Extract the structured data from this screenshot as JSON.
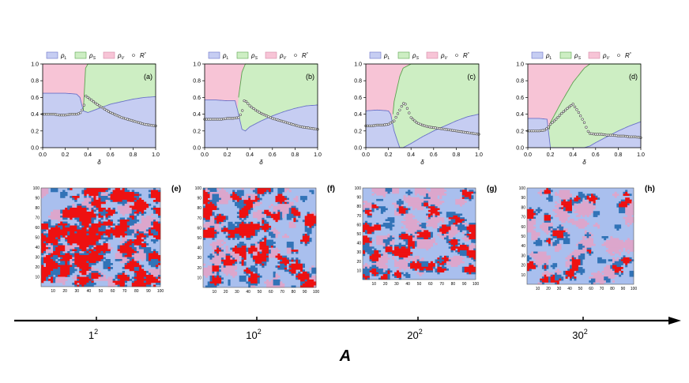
{
  "chart_data": [
    {
      "type": "area",
      "panel_label": "(a)",
      "xlabel": "δ",
      "xlim": [
        0,
        1
      ],
      "ylim": [
        0,
        1
      ],
      "xticks": [
        "0.0",
        "0.2",
        "0.4",
        "0.6",
        "0.8",
        "1.0"
      ],
      "yticks": [
        "0.0",
        "0.2",
        "0.4",
        "0.6",
        "0.8",
        "1.0"
      ],
      "legend": [
        "ρL",
        "ρS",
        "ρV",
        "R*"
      ],
      "series": [
        {
          "name": "ρL",
          "x": [
            0,
            0.1,
            0.2,
            0.3,
            0.33,
            0.36,
            0.4,
            0.5,
            0.6,
            0.7,
            0.8,
            0.9,
            1.0
          ],
          "values": [
            0.65,
            0.65,
            0.65,
            0.64,
            0.6,
            0.44,
            0.42,
            0.47,
            0.52,
            0.55,
            0.58,
            0.6,
            0.61
          ]
        },
        {
          "name": "ρS",
          "x": [
            0,
            0.1,
            0.2,
            0.3,
            0.33,
            0.36,
            0.38,
            0.4,
            0.5,
            0.6,
            0.7,
            0.8,
            0.9,
            1.0
          ],
          "values": [
            0,
            0,
            0,
            0,
            0.05,
            0.45,
            0.95,
            1.0,
            1.0,
            1.0,
            1.0,
            1.0,
            1.0,
            1.0
          ]
        },
        {
          "name": "R*",
          "x": [
            0.0,
            0.05,
            0.1,
            0.15,
            0.2,
            0.25,
            0.3,
            0.33,
            0.35,
            0.37,
            0.38,
            0.4,
            0.45,
            0.5,
            0.55,
            0.6,
            0.65,
            0.7,
            0.75,
            0.8,
            0.85,
            0.9,
            0.95,
            1.0
          ],
          "values": [
            0.4,
            0.4,
            0.4,
            0.39,
            0.39,
            0.4,
            0.4,
            0.41,
            0.45,
            0.52,
            0.62,
            0.6,
            0.55,
            0.5,
            0.46,
            0.42,
            0.39,
            0.36,
            0.34,
            0.32,
            0.3,
            0.28,
            0.27,
            0.26
          ]
        }
      ]
    },
    {
      "type": "area",
      "panel_label": "(b)",
      "xlabel": "δ",
      "xlim": [
        0,
        1
      ],
      "ylim": [
        0,
        1
      ],
      "xticks": [
        "0.0",
        "0.2",
        "0.4",
        "0.6",
        "0.8",
        "1.0"
      ],
      "yticks": [
        "0.0",
        "0.2",
        "0.4",
        "0.6",
        "0.8",
        "1.0"
      ],
      "legend": [
        "ρL",
        "ρS",
        "ρV",
        "R*"
      ],
      "series": [
        {
          "name": "ρL",
          "x": [
            0,
            0.1,
            0.2,
            0.27,
            0.3,
            0.33,
            0.36,
            0.4,
            0.5,
            0.6,
            0.7,
            0.8,
            0.9,
            1.0
          ],
          "values": [
            0.57,
            0.57,
            0.56,
            0.56,
            0.4,
            0.22,
            0.2,
            0.25,
            0.32,
            0.38,
            0.43,
            0.47,
            0.5,
            0.51
          ]
        },
        {
          "name": "ρS",
          "x": [
            0,
            0.1,
            0.2,
            0.27,
            0.3,
            0.33,
            0.36,
            0.4,
            0.5,
            0.6,
            0.7,
            0.8,
            0.9,
            1.0
          ],
          "values": [
            0,
            0,
            0,
            0,
            0.6,
            0.9,
            1.0,
            1.0,
            1.0,
            1.0,
            1.0,
            1.0,
            1.0,
            1.0
          ]
        },
        {
          "name": "R*",
          "x": [
            0.0,
            0.05,
            0.1,
            0.15,
            0.2,
            0.25,
            0.3,
            0.33,
            0.35,
            0.37,
            0.4,
            0.45,
            0.5,
            0.55,
            0.6,
            0.65,
            0.7,
            0.75,
            0.8,
            0.85,
            0.9,
            0.95,
            1.0
          ],
          "values": [
            0.34,
            0.34,
            0.34,
            0.34,
            0.35,
            0.35,
            0.36,
            0.42,
            0.56,
            0.55,
            0.5,
            0.45,
            0.41,
            0.38,
            0.35,
            0.33,
            0.31,
            0.29,
            0.27,
            0.25,
            0.24,
            0.23,
            0.22
          ]
        }
      ]
    },
    {
      "type": "area",
      "panel_label": "(c)",
      "xlabel": "δ",
      "xlim": [
        0,
        1
      ],
      "ylim": [
        0,
        1
      ],
      "xticks": [
        "0.0",
        "0.2",
        "0.4",
        "0.6",
        "0.8",
        "1.0"
      ],
      "yticks": [
        "0.0",
        "0.2",
        "0.4",
        "0.6",
        "0.8",
        "1.0"
      ],
      "legend": [
        "ρL",
        "ρS",
        "ρV",
        "R*"
      ],
      "series": [
        {
          "name": "ρL",
          "x": [
            0,
            0.1,
            0.2,
            0.22,
            0.25,
            0.3,
            0.33,
            0.4,
            0.5,
            0.6,
            0.7,
            0.8,
            0.9,
            1.0
          ],
          "values": [
            0.44,
            0.45,
            0.44,
            0.4,
            0.2,
            0.0,
            0.0,
            0.05,
            0.13,
            0.2,
            0.26,
            0.32,
            0.37,
            0.4
          ]
        },
        {
          "name": "ρS",
          "x": [
            0,
            0.1,
            0.2,
            0.22,
            0.25,
            0.3,
            0.33,
            0.4,
            0.5,
            0.6,
            0.7,
            0.8,
            0.9,
            1.0
          ],
          "values": [
            0,
            0,
            0,
            0.1,
            0.55,
            0.85,
            0.95,
            1.0,
            1.0,
            1.0,
            1.0,
            1.0,
            1.0,
            1.0
          ]
        },
        {
          "name": "R*",
          "x": [
            0.0,
            0.05,
            0.1,
            0.15,
            0.2,
            0.25,
            0.3,
            0.33,
            0.35,
            0.37,
            0.4,
            0.45,
            0.5,
            0.55,
            0.6,
            0.65,
            0.7,
            0.75,
            0.8,
            0.85,
            0.9,
            0.95,
            1.0
          ],
          "values": [
            0.26,
            0.26,
            0.27,
            0.27,
            0.28,
            0.32,
            0.45,
            0.53,
            0.52,
            0.46,
            0.36,
            0.3,
            0.27,
            0.25,
            0.24,
            0.23,
            0.22,
            0.21,
            0.2,
            0.19,
            0.18,
            0.17,
            0.16
          ]
        }
      ]
    },
    {
      "type": "area",
      "panel_label": "(d)",
      "xlabel": "δ",
      "xlim": [
        0,
        1
      ],
      "ylim": [
        0,
        1
      ],
      "xticks": [
        "0.0",
        "0.2",
        "0.4",
        "0.6",
        "0.8",
        "1.0"
      ],
      "yticks": [
        "0.0",
        "0.2",
        "0.4",
        "0.6",
        "0.8",
        "1.0"
      ],
      "legend": [
        "ρL",
        "ρS",
        "ρV",
        "R*"
      ],
      "series": [
        {
          "name": "ρL",
          "x": [
            0,
            0.1,
            0.17,
            0.2,
            0.3,
            0.4,
            0.5,
            0.55,
            0.6,
            0.7,
            0.8,
            0.9,
            1.0
          ],
          "values": [
            0.35,
            0.35,
            0.34,
            0.0,
            0.0,
            0.0,
            0.0,
            0.02,
            0.06,
            0.13,
            0.2,
            0.26,
            0.31
          ]
        },
        {
          "name": "ρS",
          "x": [
            0,
            0.1,
            0.17,
            0.2,
            0.3,
            0.4,
            0.5,
            0.55,
            0.6,
            0.7,
            0.8,
            0.9,
            1.0
          ],
          "values": [
            0,
            0,
            0.05,
            0.3,
            0.55,
            0.78,
            0.95,
            1.0,
            1.0,
            1.0,
            1.0,
            1.0,
            1.0
          ]
        },
        {
          "name": "R*",
          "x": [
            0.0,
            0.05,
            0.1,
            0.15,
            0.18,
            0.2,
            0.25,
            0.3,
            0.35,
            0.4,
            0.42,
            0.45,
            0.5,
            0.53,
            0.55,
            0.6,
            0.65,
            0.7,
            0.75,
            0.8,
            0.85,
            0.9,
            0.95,
            1.0
          ],
          "values": [
            0.2,
            0.2,
            0.2,
            0.21,
            0.24,
            0.28,
            0.34,
            0.41,
            0.47,
            0.52,
            0.48,
            0.42,
            0.3,
            0.2,
            0.17,
            0.16,
            0.16,
            0.15,
            0.15,
            0.14,
            0.14,
            0.13,
            0.13,
            0.12
          ]
        }
      ]
    },
    {
      "type": "heatmap",
      "panel_label": "(e)",
      "xticks": [
        "10",
        "20",
        "30",
        "40",
        "50",
        "60",
        "70",
        "80",
        "90",
        "100"
      ],
      "yticks": [
        "10",
        "20",
        "30",
        "40",
        "50",
        "60",
        "70",
        "80",
        "90",
        "100"
      ],
      "red_fraction": 0.38,
      "dark_blue_fraction": 0.14
    },
    {
      "type": "heatmap",
      "panel_label": "(f)",
      "xticks": [
        "10",
        "20",
        "30",
        "40",
        "50",
        "60",
        "70",
        "80",
        "90",
        "100"
      ],
      "yticks": [
        "10",
        "20",
        "30",
        "40",
        "50",
        "60",
        "70",
        "80",
        "90",
        "100"
      ],
      "red_fraction": 0.24,
      "dark_blue_fraction": 0.14
    },
    {
      "type": "heatmap",
      "panel_label": "(g)",
      "xticks": [
        "10",
        "20",
        "30",
        "40",
        "50",
        "60",
        "70",
        "80",
        "90",
        "100"
      ],
      "yticks": [
        "10",
        "20",
        "30",
        "40",
        "50",
        "60",
        "70",
        "80",
        "90",
        "100"
      ],
      "red_fraction": 0.17,
      "dark_blue_fraction": 0.15
    },
    {
      "type": "heatmap",
      "panel_label": "(h)",
      "xticks": [
        "10",
        "20",
        "30",
        "40",
        "50",
        "60",
        "70",
        "80",
        "90",
        "100"
      ],
      "yticks": [
        "10",
        "20",
        "30",
        "40",
        "50",
        "60",
        "70",
        "80",
        "90",
        "100"
      ],
      "red_fraction": 0.1,
      "dark_blue_fraction": 0.16
    }
  ],
  "bottom_axis": {
    "label": "A",
    "ticks": [
      {
        "base": "1",
        "exp": "2"
      },
      {
        "base": "10",
        "exp": "2"
      },
      {
        "base": "20",
        "exp": "2"
      },
      {
        "base": "30",
        "exp": "2"
      }
    ]
  },
  "colors": {
    "liquid": "#c6cdf2",
    "solid": "#cdeec3",
    "vapor": "#f7c4d6",
    "lattice_red": "#ee1111",
    "lattice_dark_blue": "#3173b7",
    "lattice_light_blue": "#a9bfee",
    "lattice_pink": "#dca6cc",
    "marker": "#444444"
  }
}
